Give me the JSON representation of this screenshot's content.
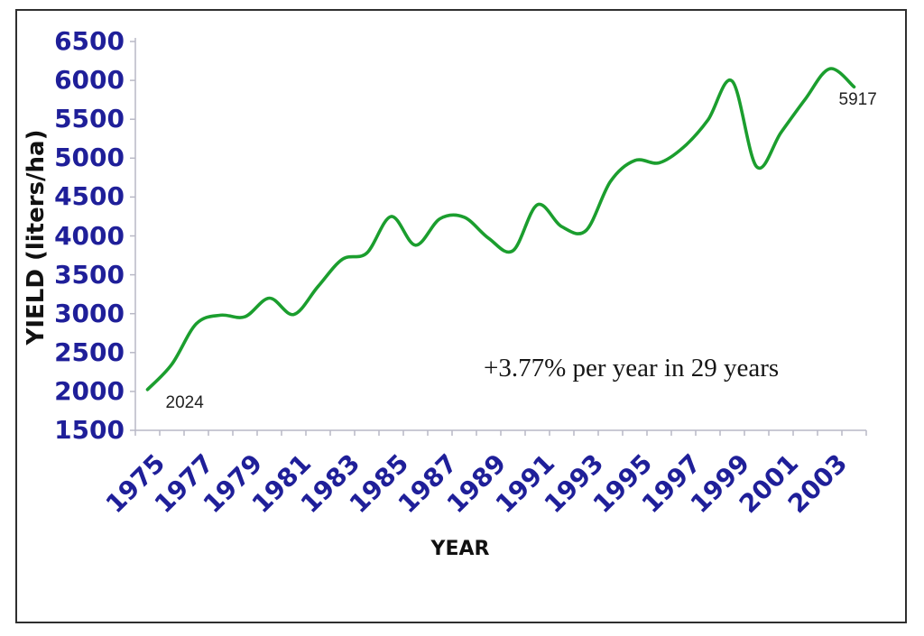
{
  "chart_data": {
    "type": "line",
    "title": "",
    "xlabel": "YEAR",
    "ylabel": "YIELD (liters/ha)",
    "x": [
      1975,
      1976,
      1977,
      1978,
      1979,
      1980,
      1981,
      1982,
      1983,
      1984,
      1985,
      1986,
      1987,
      1988,
      1989,
      1990,
      1991,
      1992,
      1993,
      1994,
      1995,
      1996,
      1997,
      1998,
      1999,
      2000,
      2001,
      2002,
      2003,
      2004
    ],
    "series": [
      {
        "name": "yield",
        "values": [
          2024,
          2350,
          2870,
          2980,
          2960,
          3200,
          2990,
          3350,
          3700,
          3780,
          4250,
          3880,
          4220,
          4240,
          3970,
          3810,
          4400,
          4120,
          4070,
          4700,
          4970,
          4940,
          5140,
          5490,
          5990,
          4890,
          5330,
          5760,
          6150,
          5917
        ]
      }
    ],
    "ylim": [
      1500,
      6500
    ],
    "yticks": [
      1500,
      2000,
      2500,
      3000,
      3500,
      4000,
      4500,
      5000,
      5500,
      6000,
      6500
    ],
    "xtick_labels": [
      "1975",
      "1977",
      "1979",
      "1981",
      "1983",
      "1985",
      "1987",
      "1989",
      "1991",
      "1993",
      "1995",
      "1997",
      "1999",
      "2001",
      "2003"
    ],
    "grid": false,
    "legend": "none",
    "smooth": true,
    "colors": {
      "line": "#1b9e2e",
      "tick_label": "#1f1f99",
      "axis": "#b9b9c6",
      "annotation_text": "#222222"
    },
    "annotations": [
      {
        "role": "first-point",
        "text": "2024",
        "year": 1975,
        "value": 2024
      },
      {
        "role": "last-point",
        "text": "5917",
        "year": 2004,
        "value": 5917
      },
      {
        "role": "growth-note",
        "text": "+3.77% per year in 29 years"
      }
    ]
  }
}
